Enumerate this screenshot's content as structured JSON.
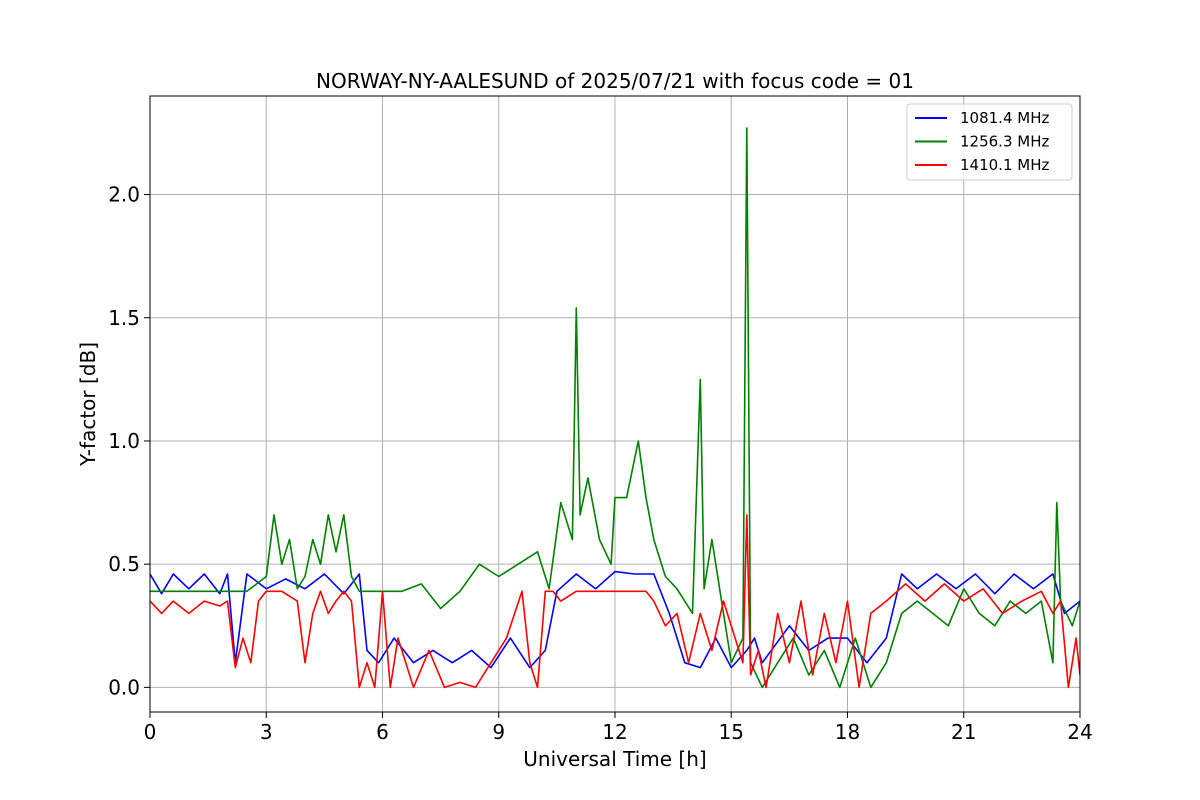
{
  "chart_data": {
    "type": "line",
    "title": "NORWAY-NY-AALESUND of 2025/07/21 with focus code = 01",
    "xlabel": "Universal Time [h]",
    "ylabel": "Y-factor [dB]",
    "xlim": [
      0,
      24
    ],
    "ylim": [
      -0.1,
      2.4
    ],
    "x_ticks": [
      0,
      3,
      6,
      9,
      12,
      15,
      18,
      21,
      24
    ],
    "y_ticks": [
      0.0,
      0.5,
      1.0,
      1.5,
      2.0
    ],
    "x_tick_labels": [
      "0",
      "3",
      "6",
      "9",
      "12",
      "15",
      "18",
      "21",
      "24"
    ],
    "y_tick_labels": [
      "0.0",
      "0.5",
      "1.0",
      "1.5",
      "2.0"
    ],
    "grid": true,
    "legend_position": "top-right",
    "series": [
      {
        "name": "1081.4 MHz",
        "color": "#0000ff",
        "x": [
          0,
          0.3,
          0.6,
          1.0,
          1.4,
          1.8,
          2.0,
          2.2,
          2.5,
          3.0,
          3.5,
          4.0,
          4.5,
          5.0,
          5.4,
          5.6,
          5.9,
          6.3,
          6.8,
          7.3,
          7.8,
          8.3,
          8.8,
          9.3,
          9.8,
          10.2,
          10.5,
          11.0,
          11.5,
          12.0,
          12.5,
          13.0,
          13.4,
          13.8,
          14.2,
          14.6,
          15.0,
          15.4,
          15.6,
          15.8,
          16.5,
          17.0,
          17.5,
          18.0,
          18.5,
          19.0,
          19.4,
          19.8,
          20.3,
          20.8,
          21.3,
          21.8,
          22.3,
          22.8,
          23.3,
          23.6,
          24.0
        ],
        "y": [
          0.46,
          0.38,
          0.46,
          0.4,
          0.46,
          0.38,
          0.46,
          0.1,
          0.46,
          0.4,
          0.44,
          0.4,
          0.46,
          0.38,
          0.46,
          0.15,
          0.1,
          0.2,
          0.1,
          0.15,
          0.1,
          0.15,
          0.08,
          0.2,
          0.08,
          0.15,
          0.39,
          0.46,
          0.4,
          0.47,
          0.46,
          0.46,
          0.3,
          0.1,
          0.08,
          0.2,
          0.08,
          0.15,
          0.2,
          0.1,
          0.25,
          0.15,
          0.2,
          0.2,
          0.1,
          0.2,
          0.46,
          0.4,
          0.46,
          0.4,
          0.46,
          0.38,
          0.46,
          0.4,
          0.46,
          0.3,
          0.35
        ]
      },
      {
        "name": "1256.3 MHz",
        "color": "#008000",
        "x": [
          0,
          0.5,
          1.0,
          1.5,
          2.0,
          2.5,
          3.0,
          3.2,
          3.4,
          3.6,
          3.8,
          4.0,
          4.2,
          4.4,
          4.6,
          4.8,
          5.0,
          5.2,
          5.4,
          5.6,
          6.0,
          6.5,
          7.0,
          7.5,
          8.0,
          8.5,
          9.0,
          9.5,
          10.0,
          10.3,
          10.6,
          10.9,
          11.0,
          11.1,
          11.3,
          11.6,
          11.9,
          12.0,
          12.3,
          12.6,
          12.8,
          13.0,
          13.3,
          13.6,
          14.0,
          14.2,
          14.3,
          14.5,
          14.8,
          15.0,
          15.3,
          15.4,
          15.5,
          15.8,
          16.2,
          16.6,
          17.0,
          17.4,
          17.8,
          18.2,
          18.6,
          19.0,
          19.4,
          19.8,
          20.2,
          20.6,
          21.0,
          21.4,
          21.8,
          22.2,
          22.6,
          23.0,
          23.3,
          23.4,
          23.5,
          23.8,
          24.0
        ],
        "y": [
          0.39,
          0.39,
          0.39,
          0.39,
          0.39,
          0.39,
          0.45,
          0.7,
          0.5,
          0.6,
          0.4,
          0.45,
          0.6,
          0.5,
          0.7,
          0.55,
          0.7,
          0.45,
          0.39,
          0.39,
          0.39,
          0.39,
          0.42,
          0.32,
          0.39,
          0.5,
          0.45,
          0.5,
          0.55,
          0.4,
          0.75,
          0.6,
          1.54,
          0.7,
          0.85,
          0.6,
          0.5,
          0.77,
          0.77,
          1.0,
          0.77,
          0.6,
          0.45,
          0.4,
          0.3,
          1.25,
          0.4,
          0.6,
          0.3,
          0.1,
          0.2,
          2.27,
          0.1,
          0.0,
          0.1,
          0.2,
          0.05,
          0.15,
          0.0,
          0.2,
          0.0,
          0.1,
          0.3,
          0.35,
          0.3,
          0.25,
          0.4,
          0.3,
          0.25,
          0.35,
          0.3,
          0.35,
          0.1,
          0.75,
          0.35,
          0.25,
          0.35
        ]
      },
      {
        "name": "1410.1 MHz",
        "color": "#ff0000",
        "x": [
          0,
          0.3,
          0.6,
          1.0,
          1.4,
          1.8,
          2.0,
          2.2,
          2.4,
          2.6,
          2.8,
          3.0,
          3.4,
          3.8,
          4.0,
          4.2,
          4.4,
          4.6,
          4.8,
          5.0,
          5.2,
          5.4,
          5.6,
          5.8,
          6.0,
          6.2,
          6.4,
          6.8,
          7.2,
          7.6,
          8.0,
          8.4,
          8.8,
          9.2,
          9.6,
          9.8,
          10.0,
          10.2,
          10.4,
          10.6,
          11.0,
          11.5,
          12.0,
          12.5,
          12.8,
          13.0,
          13.3,
          13.6,
          13.9,
          14.2,
          14.5,
          14.8,
          15.1,
          15.3,
          15.4,
          15.5,
          15.7,
          15.9,
          16.2,
          16.5,
          16.8,
          17.1,
          17.4,
          17.7,
          18.0,
          18.3,
          18.6,
          19.0,
          19.5,
          20.0,
          20.5,
          21.0,
          21.5,
          22.0,
          22.5,
          23.0,
          23.3,
          23.5,
          23.7,
          23.9,
          24.0
        ],
        "y": [
          0.35,
          0.3,
          0.35,
          0.3,
          0.35,
          0.33,
          0.35,
          0.08,
          0.2,
          0.1,
          0.35,
          0.39,
          0.39,
          0.35,
          0.1,
          0.3,
          0.39,
          0.3,
          0.35,
          0.39,
          0.35,
          0.0,
          0.1,
          0.0,
          0.39,
          0.0,
          0.2,
          0.0,
          0.15,
          0.0,
          0.02,
          0.0,
          0.1,
          0.2,
          0.39,
          0.1,
          0.0,
          0.39,
          0.39,
          0.35,
          0.39,
          0.39,
          0.39,
          0.39,
          0.39,
          0.35,
          0.25,
          0.3,
          0.1,
          0.3,
          0.15,
          0.35,
          0.2,
          0.1,
          0.7,
          0.05,
          0.15,
          0.0,
          0.3,
          0.1,
          0.35,
          0.05,
          0.3,
          0.1,
          0.35,
          0.0,
          0.3,
          0.35,
          0.42,
          0.35,
          0.42,
          0.35,
          0.4,
          0.3,
          0.35,
          0.39,
          0.3,
          0.35,
          0.0,
          0.2,
          0.05
        ]
      }
    ]
  }
}
